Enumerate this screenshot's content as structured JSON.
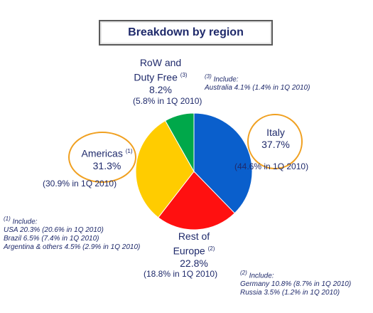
{
  "title": "Breakdown by region",
  "chart_data": {
    "type": "pie",
    "categories": [
      "Italy",
      "Rest of Europe",
      "Americas",
      "RoW and Duty Free"
    ],
    "values": [
      37.7,
      22.8,
      31.3,
      8.2
    ],
    "colors": [
      "#0a5fcc",
      "#ff1010",
      "#ffcc00",
      "#00a84a"
    ],
    "prior_values_label": "1Q 2010",
    "prior_values": [
      44.6,
      18.8,
      30.9,
      5.8
    ]
  },
  "labels": {
    "italy": {
      "name": "Italy",
      "value": "37.7%",
      "prior": "(44.6% in  1Q 2010)"
    },
    "rest_of_europe": {
      "name_line1": "Rest of",
      "name_line2": "Europe",
      "note_ref": "(2)",
      "value": "22.8%",
      "prior": "(18.8% in  1Q 2010)"
    },
    "americas": {
      "name": "Americas",
      "note_ref": "(1)",
      "value": "31.3%",
      "prior": "(30.9% in  1Q 2010)"
    },
    "row": {
      "name_line1": "RoW and",
      "name_line2": "Duty Free",
      "note_ref": "(3)",
      "value": "8.2%",
      "prior": "(5.8% in  1Q 2010)"
    }
  },
  "notes": {
    "n1": {
      "ref": "(1)",
      "head": "Include:",
      "lines": [
        "USA  20.3% (20.6% in 1Q 2010)",
        "Brazil  6.5% (7.4% in 1Q 2010)",
        "Argentina & others 4.5% (2.9% in 1Q 2010)"
      ]
    },
    "n2": {
      "ref": "(2)",
      "head": "Include:",
      "lines": [
        "Germany  10.8% (8.7% in 1Q 2010)",
        "Russia  3.5% (1.2% in 1Q 2010)"
      ]
    },
    "n3": {
      "ref": "(3)",
      "head": "Include:",
      "lines": [
        "Australia  4.1% (1.4% in 1Q 2010)"
      ]
    }
  }
}
